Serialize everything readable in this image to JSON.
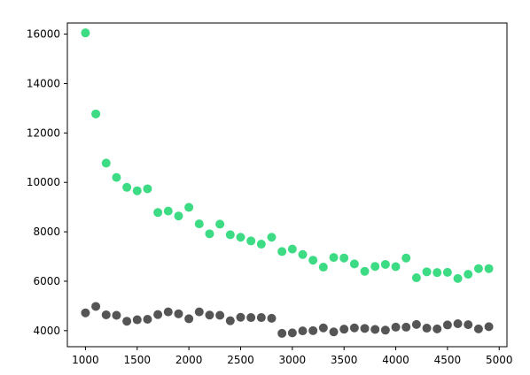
{
  "chart_data": {
    "type": "scatter",
    "title": "",
    "xlabel": "",
    "ylabel": "",
    "xlim": [
      825,
      5075
    ],
    "ylim": [
      3350,
      16450
    ],
    "grid": false,
    "legend": "none",
    "x_ticks": [
      1000,
      1500,
      2000,
      2500,
      3000,
      3500,
      4000,
      4500,
      5000
    ],
    "y_ticks": [
      4000,
      6000,
      8000,
      10000,
      12000,
      14000,
      16000
    ],
    "series": [
      {
        "color": "#3ddc84",
        "x": [
          1000,
          1100,
          1200,
          1300,
          1400,
          1500,
          1600,
          1700,
          1800,
          1900,
          2000,
          2100,
          2200,
          2300,
          2400,
          2500,
          2600,
          2700,
          2800,
          2900,
          3000,
          3100,
          3200,
          3300,
          3400,
          3500,
          3600,
          3700,
          3800,
          3900,
          4000,
          4100,
          4200,
          4300,
          4400,
          4500,
          4600,
          4700,
          4800,
          4900
        ],
        "y": [
          16050,
          12770,
          10780,
          10200,
          9800,
          9660,
          9740,
          8780,
          8840,
          8640,
          8990,
          8320,
          7920,
          8310,
          7880,
          7780,
          7630,
          7500,
          7780,
          7200,
          7300,
          7080,
          6850,
          6570,
          6960,
          6940,
          6700,
          6400,
          6600,
          6680,
          6590,
          6940,
          6140,
          6380,
          6350,
          6360,
          6110,
          6280,
          6510,
          6510
        ]
      },
      {
        "color": "#555555",
        "x": [
          1000,
          1100,
          1200,
          1300,
          1400,
          1500,
          1600,
          1700,
          1800,
          1900,
          2000,
          2100,
          2200,
          2300,
          2400,
          2500,
          2600,
          2700,
          2800,
          2900,
          3000,
          3100,
          3200,
          3300,
          3400,
          3500,
          3600,
          3700,
          3800,
          3900,
          4000,
          4100,
          4200,
          4300,
          4400,
          4500,
          4600,
          4700,
          4800,
          4900
        ],
        "y": [
          4720,
          4980,
          4640,
          4620,
          4380,
          4440,
          4460,
          4650,
          4760,
          4680,
          4480,
          4760,
          4630,
          4620,
          4400,
          4540,
          4530,
          4530,
          4500,
          3890,
          3910,
          3990,
          4000,
          4110,
          3950,
          4060,
          4110,
          4090,
          4050,
          4020,
          4140,
          4140,
          4250,
          4100,
          4070,
          4230,
          4280,
          4240,
          4070,
          4160
        ]
      }
    ]
  }
}
